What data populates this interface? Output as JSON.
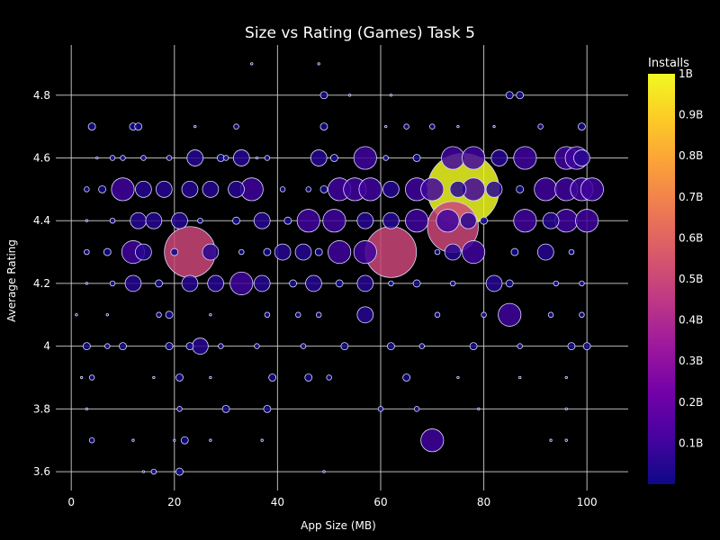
{
  "chart_data": {
    "type": "scatter",
    "title": "Size vs Rating (Games) Task 5",
    "xlabel": "App Size (MB)",
    "ylabel": "Average Rating",
    "xlim": [
      -3,
      108
    ],
    "ylim": [
      3.54,
      4.96
    ],
    "xticks": [
      0,
      20,
      40,
      60,
      80,
      100
    ],
    "yticks": [
      3.6,
      3.8,
      4,
      4.2,
      4.4,
      4.6,
      4.8
    ],
    "ytick_labels": [
      "3.6",
      "3.8",
      "4",
      "4.2",
      "4.4",
      "4.6",
      "4.8"
    ],
    "grid": true,
    "colorbar": {
      "title": "Installs",
      "min": 0,
      "max": 1000000000,
      "ticks": [
        100000000,
        200000000,
        300000000,
        400000000,
        500000000,
        600000000,
        700000000,
        800000000,
        900000000,
        1000000000
      ],
      "tick_labels": [
        "0.1B",
        "0.2B",
        "0.3B",
        "0.4B",
        "0.5B",
        "0.6B",
        "0.7B",
        "0.8B",
        "0.9B",
        "1B"
      ],
      "colorscale": [
        "#0d0887",
        "#46039f",
        "#7201a8",
        "#9c179e",
        "#bd3786",
        "#d8576b",
        "#ed7953",
        "#fb9f3a",
        "#fdca26",
        "#f0f921"
      ]
    },
    "size_encodes": "installs",
    "points": [
      [
        35,
        4.9,
        1000000
      ],
      [
        48,
        4.9,
        1000000
      ],
      [
        49,
        4.8,
        10000000
      ],
      [
        54,
        4.8,
        1000000
      ],
      [
        62,
        4.8,
        500000
      ],
      [
        85,
        4.8,
        10000000
      ],
      [
        87,
        4.8,
        10000000
      ],
      [
        4,
        4.7,
        10000000
      ],
      [
        12,
        4.7,
        10000000
      ],
      [
        13,
        4.7,
        10000000
      ],
      [
        24,
        4.7,
        1000000
      ],
      [
        32,
        4.7,
        5000000
      ],
      [
        49,
        4.7,
        10000000
      ],
      [
        61,
        4.7,
        1000000
      ],
      [
        65,
        4.7,
        5000000
      ],
      [
        70,
        4.7,
        5000000
      ],
      [
        75,
        4.7,
        1000000
      ],
      [
        82,
        4.7,
        500000
      ],
      [
        91,
        4.7,
        5000000
      ],
      [
        99,
        4.7,
        10000000
      ],
      [
        5,
        4.6,
        1000000
      ],
      [
        8,
        4.6,
        5000000
      ],
      [
        10,
        4.6,
        5000000
      ],
      [
        14,
        4.6,
        5000000
      ],
      [
        19,
        4.6,
        5000000
      ],
      [
        24,
        4.6,
        50000000
      ],
      [
        29,
        4.6,
        10000000
      ],
      [
        30,
        4.6,
        5000000
      ],
      [
        33,
        4.6,
        50000000
      ],
      [
        36,
        4.6,
        1000000
      ],
      [
        38,
        4.6,
        5000000
      ],
      [
        48,
        4.6,
        50000000
      ],
      [
        51,
        4.6,
        10000000
      ],
      [
        57,
        4.6,
        100000000
      ],
      [
        61,
        4.6,
        5000000
      ],
      [
        67,
        4.6,
        10000000
      ],
      [
        74,
        4.6,
        100000000
      ],
      [
        78,
        4.6,
        100000000
      ],
      [
        83,
        4.6,
        50000000
      ],
      [
        88,
        4.6,
        100000000
      ],
      [
        96,
        4.6,
        100000000
      ],
      [
        98,
        4.6,
        100000000
      ],
      [
        99,
        4.6,
        50000000
      ],
      [
        3,
        4.5,
        5000000
      ],
      [
        6,
        4.5,
        10000000
      ],
      [
        10,
        4.5,
        100000000
      ],
      [
        14,
        4.5,
        50000000
      ],
      [
        18,
        4.5,
        50000000
      ],
      [
        23,
        4.5,
        50000000
      ],
      [
        27,
        4.5,
        50000000
      ],
      [
        32,
        4.5,
        50000000
      ],
      [
        35,
        4.5,
        100000000
      ],
      [
        41,
        4.5,
        5000000
      ],
      [
        46,
        4.5,
        5000000
      ],
      [
        49,
        4.5,
        10000000
      ],
      [
        52,
        4.5,
        100000000
      ],
      [
        55,
        4.5,
        100000000
      ],
      [
        58,
        4.5,
        100000000
      ],
      [
        62,
        4.5,
        50000000
      ],
      [
        67,
        4.5,
        100000000
      ],
      [
        70,
        4.5,
        100000000
      ],
      [
        75,
        4.5,
        50000000
      ],
      [
        76,
        4.5,
        1000000000
      ],
      [
        78,
        4.5,
        100000000
      ],
      [
        82,
        4.5,
        50000000
      ],
      [
        87,
        4.5,
        10000000
      ],
      [
        92,
        4.5,
        100000000
      ],
      [
        96,
        4.5,
        100000000
      ],
      [
        99,
        4.5,
        100000000
      ],
      [
        101,
        4.5,
        100000000
      ],
      [
        3,
        4.4,
        1000000
      ],
      [
        8,
        4.4,
        5000000
      ],
      [
        13,
        4.4,
        50000000
      ],
      [
        16,
        4.4,
        50000000
      ],
      [
        21,
        4.4,
        50000000
      ],
      [
        25,
        4.4,
        5000000
      ],
      [
        32,
        4.4,
        10000000
      ],
      [
        37,
        4.4,
        50000000
      ],
      [
        42,
        4.4,
        10000000
      ],
      [
        46,
        4.4,
        100000000
      ],
      [
        51,
        4.4,
        100000000
      ],
      [
        57,
        4.4,
        50000000
      ],
      [
        62,
        4.4,
        50000000
      ],
      [
        67,
        4.4,
        100000000
      ],
      [
        73,
        4.4,
        100000000
      ],
      [
        74,
        4.38,
        500000000
      ],
      [
        77,
        4.4,
        50000000
      ],
      [
        80,
        4.4,
        10000000
      ],
      [
        88,
        4.4,
        100000000
      ],
      [
        93,
        4.4,
        50000000
      ],
      [
        96,
        4.4,
        100000000
      ],
      [
        100,
        4.4,
        100000000
      ],
      [
        3,
        4.3,
        5000000
      ],
      [
        7,
        4.3,
        10000000
      ],
      [
        12,
        4.3,
        100000000
      ],
      [
        14,
        4.3,
        50000000
      ],
      [
        20,
        4.3,
        10000000
      ],
      [
        23,
        4.3,
        500000000
      ],
      [
        27,
        4.3,
        50000000
      ],
      [
        33,
        4.3,
        5000000
      ],
      [
        38,
        4.3,
        10000000
      ],
      [
        41,
        4.3,
        50000000
      ],
      [
        45,
        4.3,
        50000000
      ],
      [
        48,
        4.3,
        10000000
      ],
      [
        52,
        4.3,
        100000000
      ],
      [
        57,
        4.3,
        100000000
      ],
      [
        62,
        4.3,
        500000000
      ],
      [
        71,
        4.3,
        5000000
      ],
      [
        74,
        4.3,
        50000000
      ],
      [
        78,
        4.3,
        100000000
      ],
      [
        86,
        4.3,
        10000000
      ],
      [
        92,
        4.3,
        50000000
      ],
      [
        97,
        4.3,
        5000000
      ],
      [
        3,
        4.2,
        1000000
      ],
      [
        8,
        4.2,
        5000000
      ],
      [
        12,
        4.2,
        50000000
      ],
      [
        17,
        4.2,
        10000000
      ],
      [
        23,
        4.2,
        50000000
      ],
      [
        28,
        4.2,
        50000000
      ],
      [
        33,
        4.2,
        100000000
      ],
      [
        37,
        4.2,
        50000000
      ],
      [
        43,
        4.2,
        10000000
      ],
      [
        47,
        4.2,
        50000000
      ],
      [
        52,
        4.2,
        10000000
      ],
      [
        57,
        4.2,
        50000000
      ],
      [
        62,
        4.2,
        5000000
      ],
      [
        67,
        4.2,
        10000000
      ],
      [
        74,
        4.2,
        5000000
      ],
      [
        82,
        4.2,
        50000000
      ],
      [
        85,
        4.2,
        10000000
      ],
      [
        94,
        4.2,
        5000000
      ],
      [
        99,
        4.2,
        5000000
      ],
      [
        1,
        4.1,
        1000000
      ],
      [
        7,
        4.1,
        1000000
      ],
      [
        17,
        4.1,
        5000000
      ],
      [
        19,
        4.1,
        10000000
      ],
      [
        27,
        4.1,
        1000000
      ],
      [
        38,
        4.1,
        5000000
      ],
      [
        44,
        4.1,
        5000000
      ],
      [
        48,
        4.1,
        5000000
      ],
      [
        57,
        4.1,
        50000000
      ],
      [
        71,
        4.1,
        5000000
      ],
      [
        80,
        4.1,
        5000000
      ],
      [
        85,
        4.1,
        100000000
      ],
      [
        93,
        4.1,
        5000000
      ],
      [
        99,
        4.1,
        5000000
      ],
      [
        3,
        4.0,
        10000000
      ],
      [
        7,
        4.0,
        5000000
      ],
      [
        10,
        4.0,
        10000000
      ],
      [
        19,
        4.0,
        10000000
      ],
      [
        23,
        4.0,
        10000000
      ],
      [
        25,
        4.0,
        50000000
      ],
      [
        29,
        4.0,
        5000000
      ],
      [
        36,
        4.0,
        5000000
      ],
      [
        45,
        4.0,
        5000000
      ],
      [
        53,
        4.0,
        10000000
      ],
      [
        62,
        4.0,
        10000000
      ],
      [
        68,
        4.0,
        5000000
      ],
      [
        78,
        4.0,
        10000000
      ],
      [
        87,
        4.0,
        5000000
      ],
      [
        97,
        4.0,
        10000000
      ],
      [
        100,
        4.0,
        10000000
      ],
      [
        2,
        3.9,
        500000
      ],
      [
        4,
        3.9,
        5000000
      ],
      [
        16,
        3.9,
        1000000
      ],
      [
        21,
        3.9,
        10000000
      ],
      [
        27,
        3.9,
        1000000
      ],
      [
        39,
        3.9,
        10000000
      ],
      [
        46,
        3.9,
        10000000
      ],
      [
        50,
        3.9,
        5000000
      ],
      [
        65,
        3.9,
        10000000
      ],
      [
        75,
        3.9,
        1000000
      ],
      [
        87,
        3.9,
        1000000
      ],
      [
        96,
        3.9,
        1000000
      ],
      [
        3,
        3.8,
        500000
      ],
      [
        21,
        3.8,
        5000000
      ],
      [
        30,
        3.8,
        10000000
      ],
      [
        38,
        3.8,
        10000000
      ],
      [
        60,
        3.8,
        5000000
      ],
      [
        67,
        3.8,
        5000000
      ],
      [
        79,
        3.8,
        500000
      ],
      [
        96,
        3.8,
        1000000
      ],
      [
        4,
        3.7,
        5000000
      ],
      [
        12,
        3.7,
        1000000
      ],
      [
        20,
        3.7,
        500000
      ],
      [
        22,
        3.7,
        10000000
      ],
      [
        27,
        3.7,
        1000000
      ],
      [
        37,
        3.7,
        1000000
      ],
      [
        70,
        3.7,
        100000000
      ],
      [
        93,
        3.7,
        1000000
      ],
      [
        96,
        3.7,
        1000000
      ],
      [
        14,
        3.6,
        500000
      ],
      [
        16,
        3.6,
        5000000
      ],
      [
        21,
        3.6,
        10000000
      ],
      [
        49,
        3.6,
        1000000
      ]
    ]
  }
}
